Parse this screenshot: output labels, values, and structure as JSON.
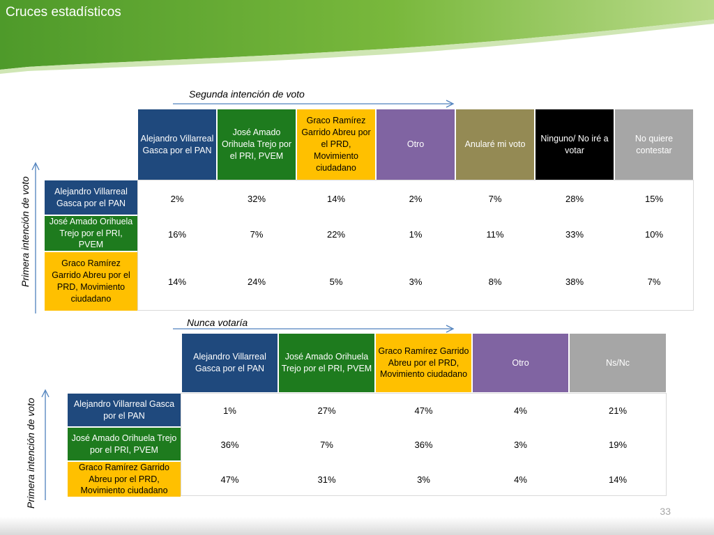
{
  "slide": {
    "title": "Cruces estadísticos",
    "page_number": "33"
  },
  "table1": {
    "title": "Segunda intención  de voto",
    "row_axis_label": "Primera intención de voto",
    "columns": [
      {
        "label": "Alejandro Villarreal Gasca por el  PAN",
        "color": "#1f497d"
      },
      {
        "label": "José Amado Orihuela Trejo por el PRI, PVEM",
        "color": "#1e7b1e"
      },
      {
        "label": "Graco Ramírez Garrido Abreu por el PRD, Movimiento ciudadano",
        "color": "#ffc000"
      },
      {
        "label": "Otro",
        "color": "#8064a2"
      },
      {
        "label": "Anularé mi voto",
        "color": "#948a54"
      },
      {
        "label": "Ninguno/ No iré a votar",
        "color": "#000000"
      },
      {
        "label": "No quiere contestar",
        "color": "#a6a6a6"
      }
    ],
    "rows": [
      {
        "label": "Alejandro Villarreal Gasca  por el  PAN",
        "color": "#1f497d",
        "values": [
          "2%",
          "32%",
          "14%",
          "2%",
          "7%",
          "28%",
          "15%"
        ]
      },
      {
        "label": "José Amado Orihuela Trejo por el PRI, PVEM",
        "color": "#1e7b1e",
        "values": [
          "16%",
          "7%",
          "22%",
          "1%",
          "11%",
          "33%",
          "10%"
        ]
      },
      {
        "label": "Graco Ramírez Garrido Abreu por el PRD, Movimiento ciudadano",
        "color": "#ffc000",
        "values": [
          "14%",
          "24%",
          "5%",
          "3%",
          "8%",
          "38%",
          "7%"
        ]
      }
    ]
  },
  "table2": {
    "title": "Nunca votaría",
    "row_axis_label": "Primera intención de voto",
    "columns": [
      {
        "label": "Alejandro Villarreal Gasca  por el  PAN",
        "color": "#1f497d"
      },
      {
        "label": "José Amado Orihuela Trejo por el PRI, PVEM",
        "color": "#1e7b1e"
      },
      {
        "label": "Graco Ramírez Garrido Abreu por el PRD, Movimiento ciudadano",
        "color": "#ffc000"
      },
      {
        "label": "Otro",
        "color": "#8064a2"
      },
      {
        "label": "Ns/Nc",
        "color": "#a6a6a6"
      }
    ],
    "rows": [
      {
        "label": "Alejandro Villarreal Gasca  por el  PAN",
        "color": "#1f497d",
        "values": [
          "1%",
          "27%",
          "47%",
          "4%",
          "21%"
        ]
      },
      {
        "label": "José Amado Orihuela Trejo por el PRI, PVEM",
        "color": "#1e7b1e",
        "values": [
          "36%",
          "7%",
          "36%",
          "3%",
          "19%"
        ]
      },
      {
        "label": "Graco Ramírez Garrido Abreu por el PRD, Movimiento ciudadano",
        "color": "#ffc000",
        "values": [
          "47%",
          "31%",
          "3%",
          "4%",
          "14%"
        ]
      }
    ]
  }
}
